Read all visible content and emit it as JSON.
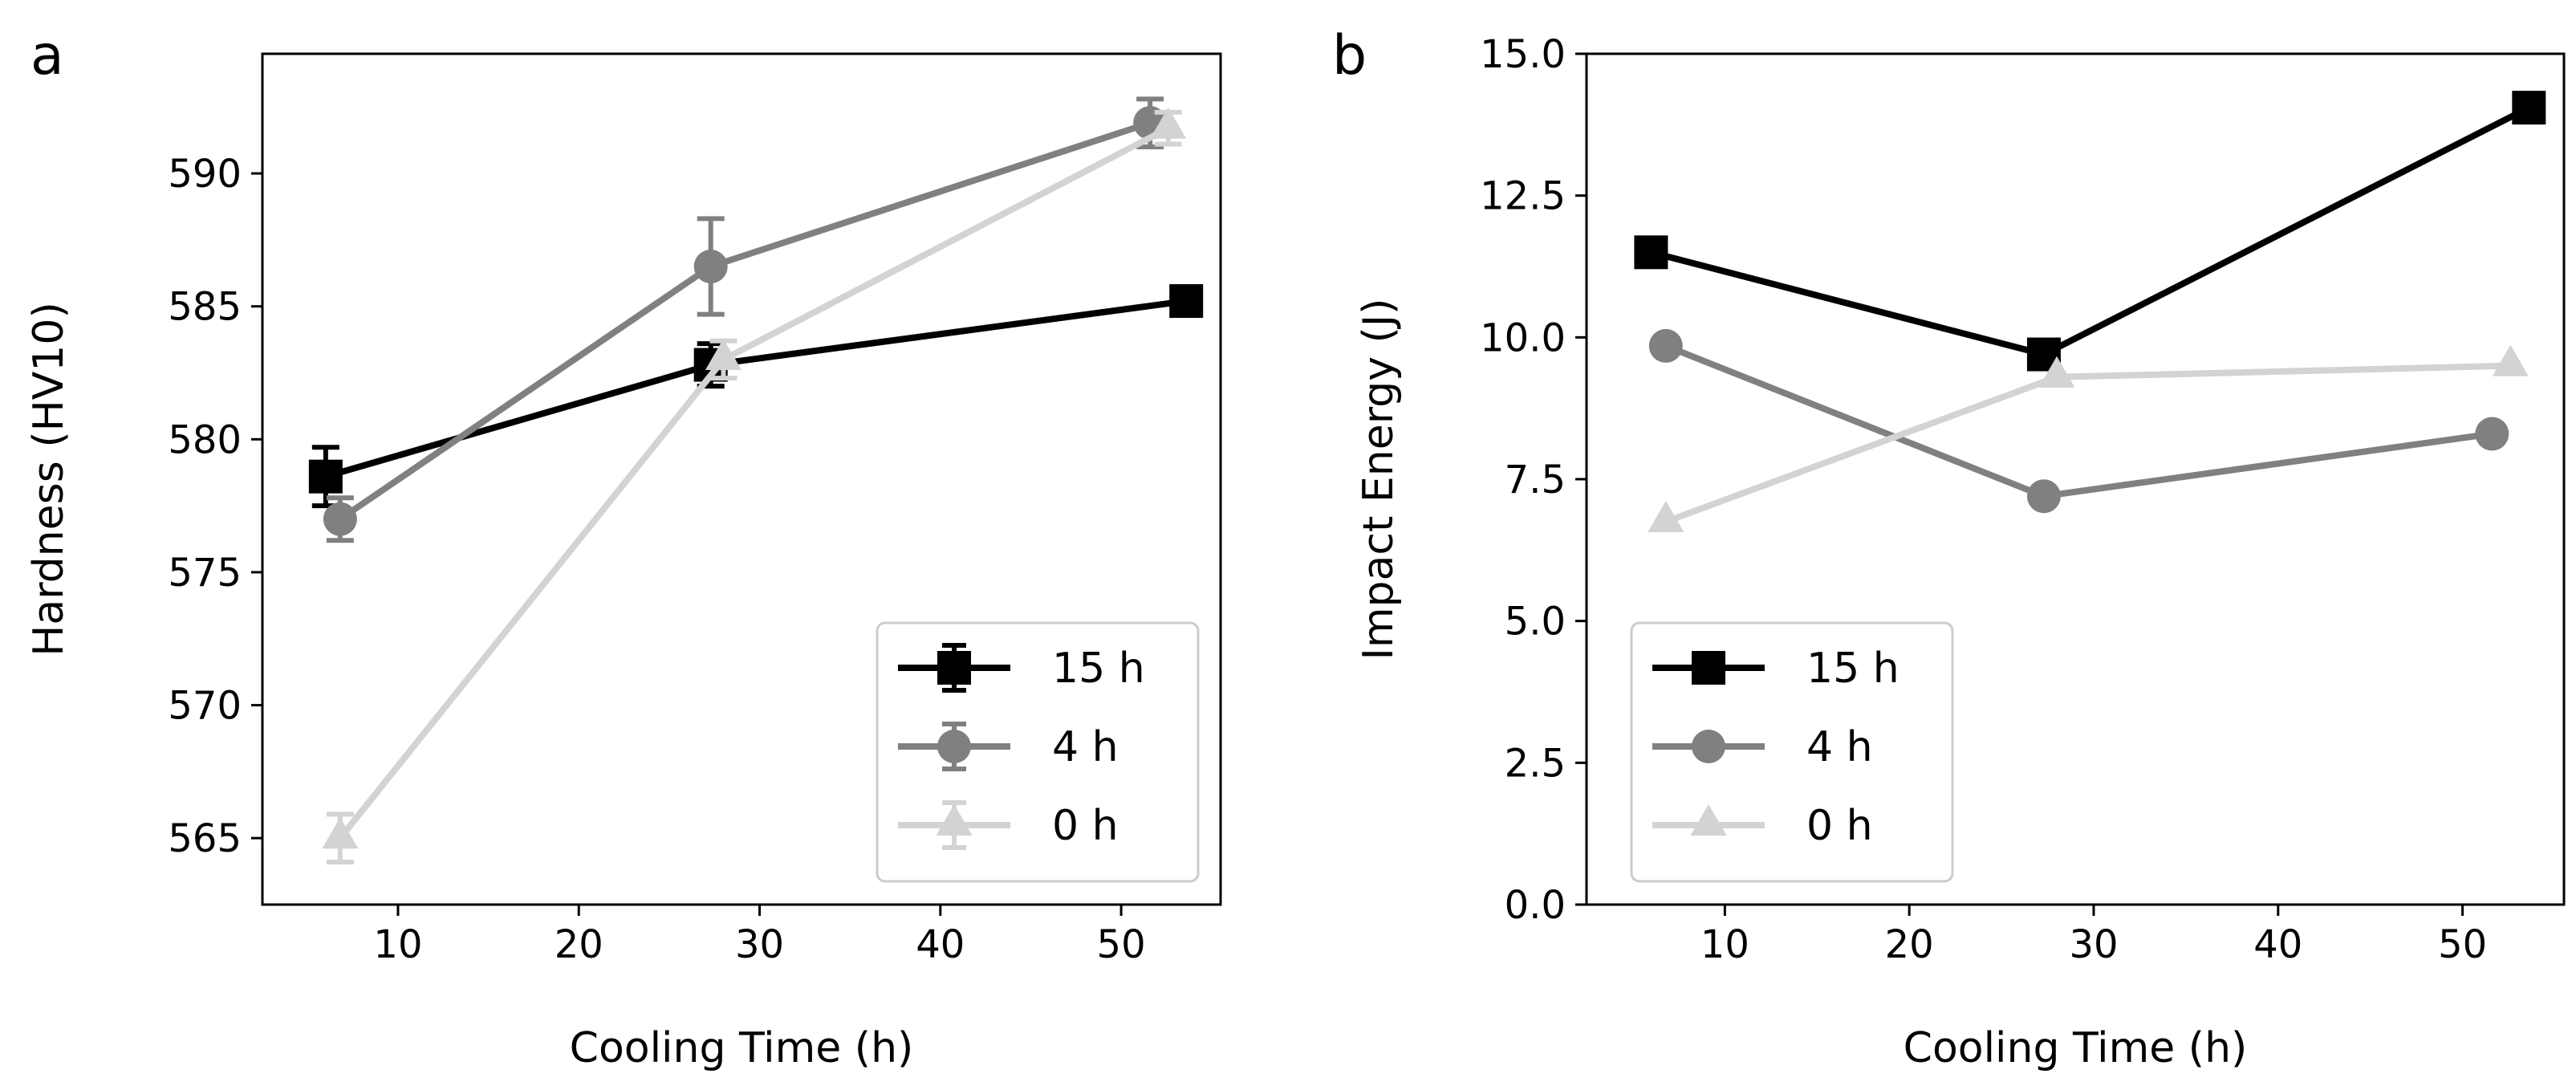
{
  "chart_data": [
    {
      "panel_label": "a",
      "type": "line",
      "xlabel": "Cooling Time (h)",
      "ylabel": "Hardness (HV10)",
      "xlim": [
        2.5,
        55.5
      ],
      "ylim": [
        562.5,
        594.5
      ],
      "x_ticks": [
        10,
        20,
        30,
        40,
        50
      ],
      "y_ticks": [
        565,
        570,
        575,
        580,
        585,
        590
      ],
      "legend_position": "lower-right",
      "error_bars": true,
      "series": [
        {
          "name": "15 h",
          "color": "#000000",
          "marker": "square",
          "x": [
            6.0,
            27.3,
            53.6
          ],
          "y": [
            578.6,
            582.8,
            585.2
          ],
          "err": [
            1.1,
            0.8,
            0.0
          ]
        },
        {
          "name": "4 h",
          "color": "#808080",
          "marker": "circle",
          "x": [
            6.8,
            27.3,
            51.6
          ],
          "y": [
            577.0,
            586.5,
            591.9
          ],
          "err": [
            0.8,
            1.8,
            0.9
          ]
        },
        {
          "name": "0 h",
          "color": "#d3d3d3",
          "marker": "triangle",
          "x": [
            6.8,
            28.0,
            52.6
          ],
          "y": [
            565.0,
            583.0,
            591.7
          ],
          "err": [
            0.9,
            0.7,
            0.6
          ]
        }
      ]
    },
    {
      "panel_label": "b",
      "type": "line",
      "xlabel": "Cooling Time (h)",
      "ylabel": "Impact Energy (J)",
      "xlim": [
        2.5,
        55.5
      ],
      "ylim": [
        0.0,
        15.0
      ],
      "x_ticks": [
        10,
        20,
        30,
        40,
        50
      ],
      "y_ticks": [
        "0.0",
        "2.5",
        "5.0",
        "7.5",
        "10.0",
        "12.5",
        "15.0"
      ],
      "legend_position": "lower-left",
      "error_bars": false,
      "series": [
        {
          "name": "15 h",
          "color": "#000000",
          "marker": "square",
          "x": [
            6.0,
            27.3,
            53.6
          ],
          "y": [
            11.5,
            9.7,
            14.05
          ]
        },
        {
          "name": "4 h",
          "color": "#808080",
          "marker": "circle",
          "x": [
            6.8,
            27.3,
            51.6
          ],
          "y": [
            9.85,
            7.2,
            8.3
          ]
        },
        {
          "name": "0 h",
          "color": "#d3d3d3",
          "marker": "triangle",
          "x": [
            6.8,
            28.0,
            52.6
          ],
          "y": [
            6.75,
            9.3,
            9.5
          ]
        }
      ]
    }
  ]
}
